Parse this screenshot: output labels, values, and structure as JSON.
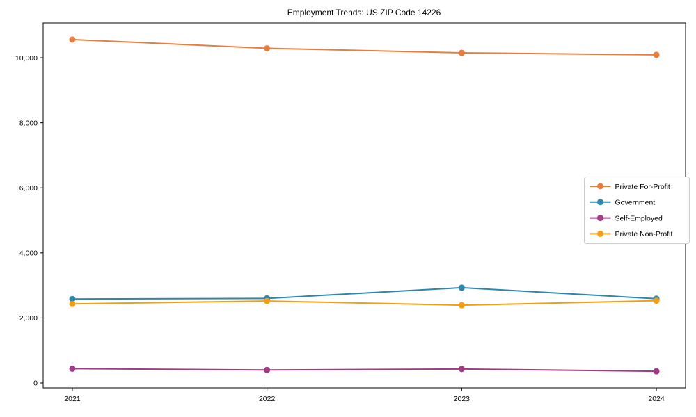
{
  "page": {
    "background": "#ffffff"
  },
  "chart_data": {
    "type": "line",
    "title": "Employment Trends: US ZIP Code 14226",
    "xlabel": "",
    "ylabel": "",
    "x": [
      2021,
      2022,
      2023,
      2024
    ],
    "x_tick_labels": [
      "2021",
      "2022",
      "2023",
      "2024"
    ],
    "y_tick_values": [
      0,
      2000,
      4000,
      6000,
      8000,
      10000
    ],
    "y_tick_labels": [
      "0",
      "2,000",
      "4,000",
      "6,000",
      "8,000",
      "10,000"
    ],
    "xlim": [
      2020.85,
      2024.15
    ],
    "ylim": [
      -150,
      11070
    ],
    "grid": false,
    "legend_position": "center-right",
    "axis_color": "#000000",
    "legend_border_color": "#cccccc",
    "series": [
      {
        "name": "Private For-Profit",
        "color": "#E87E3E",
        "values": [
          10560,
          10290,
          10150,
          10090
        ]
      },
      {
        "name": "Government",
        "color": "#2E86AB",
        "values": [
          2580,
          2600,
          2930,
          2590
        ]
      },
      {
        "name": "Self-Employed",
        "color": "#A13A87",
        "values": [
          440,
          400,
          430,
          360
        ]
      },
      {
        "name": "Private Non-Profit",
        "color": "#F49D10",
        "values": [
          2430,
          2520,
          2390,
          2530
        ]
      }
    ]
  }
}
